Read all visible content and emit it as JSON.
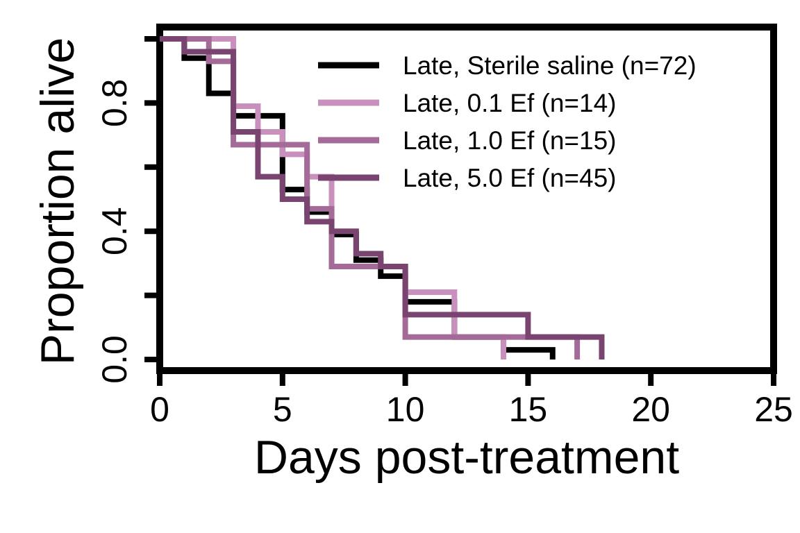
{
  "chart_data": {
    "type": "line",
    "step": true,
    "xlabel": "Days post-treatment",
    "ylabel": "Proportion alive",
    "xlim": [
      0,
      25
    ],
    "ylim": [
      0,
      1
    ],
    "x_ticks": [
      0,
      5,
      10,
      15,
      20,
      25
    ],
    "y_ticks": [
      0.0,
      0.2,
      0.4,
      0.6,
      0.8,
      1.0
    ],
    "y_tick_labels": [
      "0.0",
      "",
      "0.4",
      "",
      "0.8",
      ""
    ],
    "grid": false,
    "legend_position": "top-right",
    "series": [
      {
        "name": "Late, Sterile saline (n=72)",
        "color": "#000000",
        "x": [
          0,
          1,
          2,
          3,
          4,
          5,
          6,
          7,
          8,
          9,
          10,
          12,
          14,
          16
        ],
        "y": [
          1.0,
          0.94,
          0.83,
          0.76,
          0.76,
          0.53,
          0.46,
          0.39,
          0.31,
          0.26,
          0.18,
          0.07,
          0.03,
          0.0
        ]
      },
      {
        "name": "Late, 0.1 Ef (n=14)",
        "color": "#c98fbd",
        "x": [
          0,
          3,
          4,
          5,
          6,
          7,
          10,
          12,
          14
        ],
        "y": [
          1.0,
          0.79,
          0.71,
          0.64,
          0.57,
          0.29,
          0.21,
          0.07,
          0.0
        ]
      },
      {
        "name": "Late, 1.0 Ef (n=15)",
        "color": "#a46a98",
        "x": [
          0,
          2,
          3,
          5,
          6,
          7,
          10,
          17
        ],
        "y": [
          1.0,
          0.93,
          0.67,
          0.67,
          0.47,
          0.29,
          0.07,
          0.0
        ]
      },
      {
        "name": "Late, 5.0 Ef (n=45)",
        "color": "#7a4470",
        "x": [
          0,
          1,
          3,
          4,
          5,
          6,
          7,
          8,
          9,
          10,
          15,
          18
        ],
        "y": [
          1.0,
          0.96,
          0.71,
          0.57,
          0.5,
          0.43,
          0.4,
          0.33,
          0.29,
          0.14,
          0.07,
          0.0
        ]
      }
    ]
  }
}
